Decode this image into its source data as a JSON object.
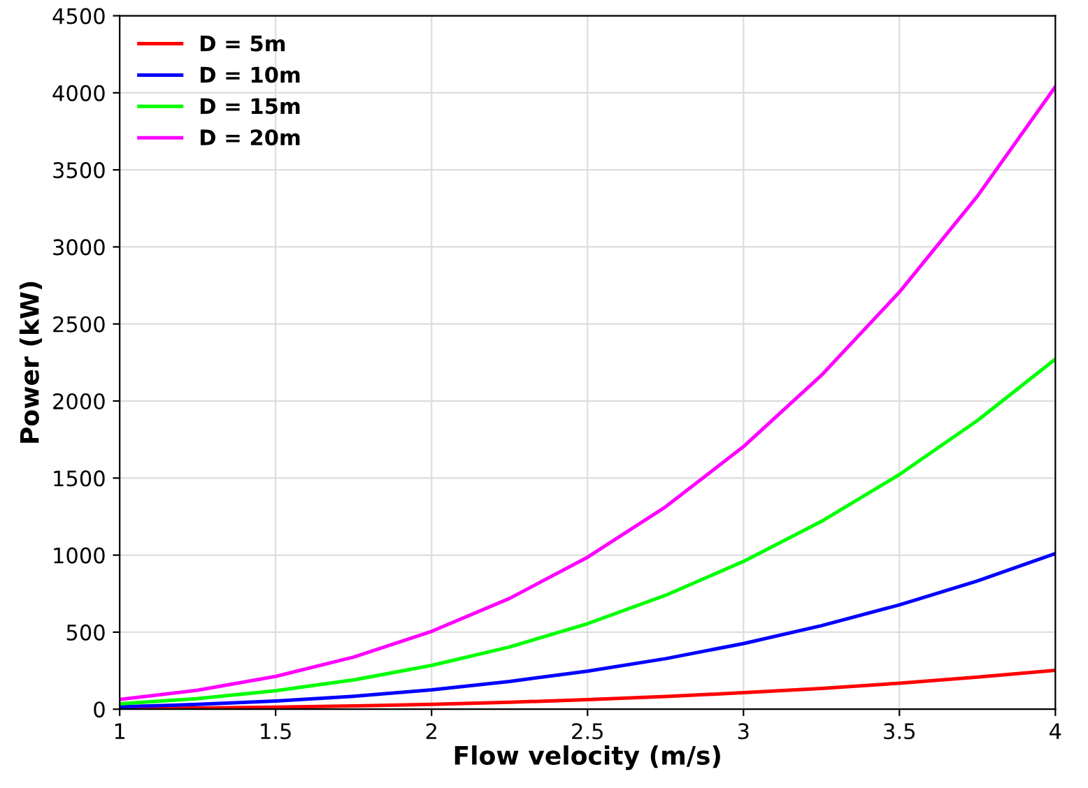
{
  "chart_data": {
    "type": "line",
    "xlabel": "Flow velocity (m/s)",
    "ylabel": "Power (kW)",
    "x": [
      1,
      1.25,
      1.5,
      1.75,
      2,
      2.25,
      2.5,
      2.75,
      3,
      3.25,
      3.5,
      3.75,
      4
    ],
    "series": [
      {
        "name": "D = 5m",
        "color": "#ff0000",
        "values": [
          4,
          8,
          13,
          21,
          32,
          45,
          62,
          82,
          107,
          135,
          169,
          208,
          252
        ]
      },
      {
        "name": "D = 10m",
        "color": "#0000ff",
        "values": [
          16,
          31,
          53,
          84,
          126,
          180,
          247,
          328,
          426,
          542,
          677,
          832,
          1010
        ]
      },
      {
        "name": "D = 15m",
        "color": "#00ff00",
        "values": [
          35,
          69,
          120,
          190,
          284,
          404,
          555,
          739,
          959,
          1219,
          1523,
          1873,
          2272
        ]
      },
      {
        "name": "D = 20m",
        "color": "#ff00ff",
        "values": [
          63,
          123,
          213,
          338,
          505,
          719,
          986,
          1313,
          1704,
          2167,
          2707,
          3329,
          4040
        ]
      }
    ],
    "xlim": [
      1,
      4
    ],
    "xticks": [
      1,
      1.5,
      2,
      2.5,
      3,
      3.5,
      4
    ],
    "ylim": [
      0,
      4500
    ],
    "yticks": [
      0,
      500,
      1000,
      1500,
      2000,
      2500,
      3000,
      3500,
      4000,
      4500
    ],
    "grid": true,
    "legend": "top left",
    "marker": "none",
    "line_style": "solid"
  }
}
